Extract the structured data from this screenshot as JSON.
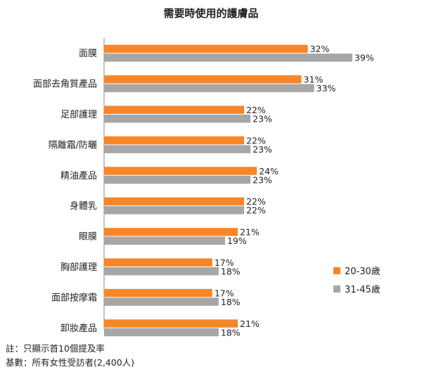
{
  "chart_data": {
    "type": "bar",
    "orientation": "horizontal",
    "title": "需要時使用的護膚品",
    "categories": [
      "面膜",
      "面部去角質產品",
      "足部護理",
      "隔離霜/防曬",
      "精油產品",
      "身體乳",
      "眼膜",
      "胸部護理",
      "面部按摩霜",
      "卸妝產品"
    ],
    "series": [
      {
        "name": "20-30歲",
        "color": "#F7862A",
        "values": [
          32,
          31,
          22,
          22,
          24,
          22,
          21,
          17,
          17,
          21
        ],
        "labels": [
          "32%",
          "31%",
          "22%",
          "22%",
          "24%",
          "22%",
          "21%",
          "17%",
          "17%",
          "21%"
        ]
      },
      {
        "name": "31-45歲",
        "color": "#A6A6A6",
        "values": [
          39,
          33,
          23,
          23,
          23,
          22,
          19,
          18,
          18,
          18
        ],
        "labels": [
          "39%",
          "33%",
          "23%",
          "23%",
          "23%",
          "22%",
          "19%",
          "18%",
          "18%",
          "18%"
        ]
      }
    ],
    "xlim": [
      0,
      45
    ],
    "legend_position": "right",
    "grid": false
  },
  "notes": {
    "line1": "註：只顯示首10個提及率",
    "line2": "基數：所有女性受訪者(2,400人)"
  }
}
